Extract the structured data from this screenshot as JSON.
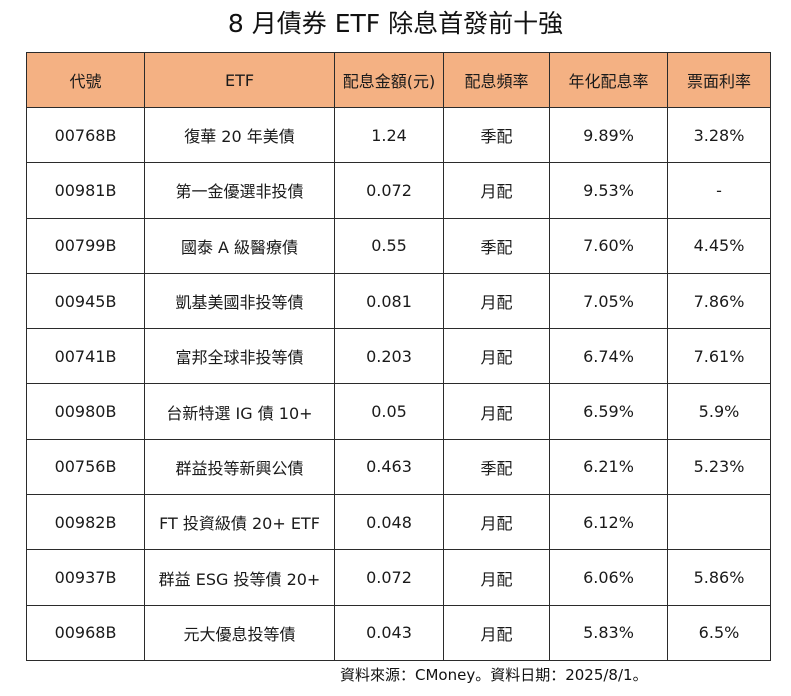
{
  "title": "8 月債券 ETF 除息首發前十強",
  "table": {
    "headers": [
      "代號",
      "ETF",
      "配息金額(元)",
      "配息頻率",
      "年化配息率",
      "票面利率"
    ],
    "rows": [
      [
        "00768B",
        "復華 20 年美債",
        "1.24",
        "季配",
        "9.89%",
        "3.28%"
      ],
      [
        "00981B",
        "第一金優選非投債",
        "0.072",
        "月配",
        "9.53%",
        "-"
      ],
      [
        "00799B",
        "國泰 A 級醫療債",
        "0.55",
        "季配",
        "7.60%",
        "4.45%"
      ],
      [
        "00945B",
        "凱基美國非投等債",
        "0.081",
        "月配",
        "7.05%",
        "7.86%"
      ],
      [
        "00741B",
        "富邦全球非投等債",
        "0.203",
        "月配",
        "6.74%",
        "7.61%"
      ],
      [
        "00980B",
        "台新特選 IG 債 10+",
        "0.05",
        "月配",
        "6.59%",
        "5.9%"
      ],
      [
        "00756B",
        "群益投等新興公債",
        "0.463",
        "季配",
        "6.21%",
        "5.23%"
      ],
      [
        "00982B",
        "FT 投資級債 20+ ETF",
        "0.048",
        "月配",
        "6.12%",
        ""
      ],
      [
        "00937B",
        "群益 ESG 投等債 20+",
        "0.072",
        "月配",
        "6.06%",
        "5.86%"
      ],
      [
        "00968B",
        "元大優息投等債",
        "0.043",
        "月配",
        "5.83%",
        "6.5%"
      ]
    ]
  },
  "source": "資料來源：CMoney。資料日期：2025/8/1。",
  "colors": {
    "header_background": "#f4b183",
    "border": "#2b2b2b"
  }
}
